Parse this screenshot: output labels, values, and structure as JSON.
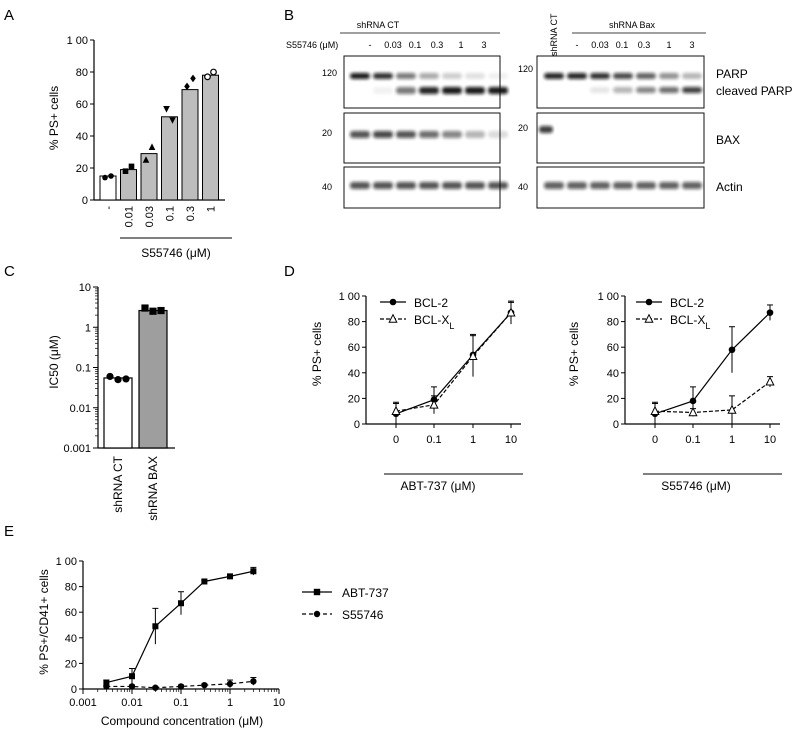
{
  "panel_labels": {
    "a": "A",
    "b": "B",
    "c": "C",
    "d": "D",
    "e": "E"
  },
  "chart_data": [
    {
      "panel": "A",
      "type": "bar",
      "ylabel": "% PS+ cells",
      "xlabel": "S55746 (μM)",
      "categories": [
        "-",
        "0.01",
        "0.03",
        "0.1",
        "0.3",
        "1"
      ],
      "ylim": [
        0,
        100
      ],
      "yticks": [
        "0",
        "20",
        "40",
        "60",
        "80",
        "1 00"
      ],
      "values": [
        15,
        19,
        29,
        52,
        69,
        78
      ],
      "points": [
        [
          14,
          15
        ],
        [
          18,
          21
        ],
        [
          25,
          33
        ],
        [
          57,
          50
        ],
        [
          71,
          76
        ],
        [
          77,
          80
        ]
      ],
      "markers": [
        "circle",
        "square",
        "triangle",
        "triangle-down",
        "diamond",
        "open-circle"
      ]
    },
    {
      "panel": "C",
      "type": "bar",
      "ylabel": "IC50 (μM)",
      "categories": [
        "shRNA CT",
        "shRNA BAX"
      ],
      "scale": "log",
      "ylim": [
        0.001,
        10
      ],
      "yticks": [
        "0.001",
        "0.01",
        "0.1",
        "1",
        "10"
      ],
      "values": [
        0.055,
        2.6
      ],
      "points": [
        [
          0.06,
          0.05,
          0.052
        ],
        [
          3.0,
          2.5,
          2.6
        ]
      ],
      "markers": [
        "circle",
        "square"
      ]
    },
    {
      "panel": "D-left",
      "type": "line",
      "ylabel": "% PS+ cells",
      "xlabel": "ABT-737  (μM)",
      "categories": [
        "0",
        "0.1",
        "1",
        "10"
      ],
      "ylim": [
        0,
        100
      ],
      "yticks": [
        "0",
        "20",
        "40",
        "60",
        "80",
        "1 00"
      ],
      "series": [
        {
          "name": "BCL-2",
          "values": [
            8,
            19,
            54,
            87
          ],
          "err": [
            9,
            10,
            16,
            9
          ]
        },
        {
          "name": "BCL-X",
          "subscript": "L",
          "values": [
            10,
            15,
            53,
            87
          ],
          "err": [
            6,
            7,
            16,
            8
          ]
        }
      ]
    },
    {
      "panel": "D-right",
      "type": "line",
      "ylabel": "% PS+ cells",
      "xlabel": "S55746  (μM)",
      "categories": [
        "0",
        "0.1",
        "1",
        "10"
      ],
      "ylim": [
        0,
        100
      ],
      "yticks": [
        "0",
        "20",
        "40",
        "60",
        "80",
        "1 00"
      ],
      "series": [
        {
          "name": "BCL-2",
          "values": [
            8,
            18,
            58,
            87
          ],
          "err": [
            9,
            11,
            18,
            6
          ]
        },
        {
          "name": "BCL-X",
          "subscript": "L",
          "values": [
            10,
            9,
            11,
            33
          ],
          "err": [
            6,
            3,
            11,
            4
          ]
        }
      ]
    },
    {
      "panel": "E",
      "type": "line",
      "ylabel": "% PS+/CD41+ cells",
      "xlabel": "Compound concentration  (μM)",
      "scale": "log-x",
      "xlim": [
        0.001,
        10
      ],
      "xticks": [
        "0.001",
        "0.01",
        "0.1",
        "1",
        "10"
      ],
      "ylim": [
        0,
        100
      ],
      "yticks": [
        "0",
        "20",
        "40",
        "60",
        "80",
        "1 00"
      ],
      "series": [
        {
          "name": "ABT-737",
          "x": [
            0.003,
            0.01,
            0.03,
            0.1,
            0.3,
            1,
            3
          ],
          "values": [
            5,
            10,
            49,
            67,
            84,
            88,
            92
          ],
          "err": [
            2,
            6,
            14,
            9,
            1,
            1,
            3
          ]
        },
        {
          "name": "S55746",
          "x": [
            0.003,
            0.01,
            0.03,
            0.1,
            0.3,
            1,
            3
          ],
          "values": [
            2,
            2,
            1,
            2,
            3,
            4,
            6
          ],
          "err": [
            1,
            1,
            1,
            1,
            1,
            3,
            3
          ]
        }
      ]
    }
  ],
  "blot": {
    "group_ct": "shRNA CT",
    "group_bax": "shRNA Bax",
    "ct_rotated": "shRNA CT",
    "conc_label": "S55746  (μM)",
    "lanes_ct": [
      "-",
      "0.03",
      "0.1",
      "0.3",
      "1",
      "3"
    ],
    "lanes_bax": [
      "-",
      "0.03",
      "0.1",
      "0.3",
      "1",
      "3"
    ],
    "mw": [
      "120",
      "20",
      "40"
    ],
    "rows": [
      "PARP",
      "cleaved PARP",
      "BAX",
      "Actin"
    ]
  }
}
